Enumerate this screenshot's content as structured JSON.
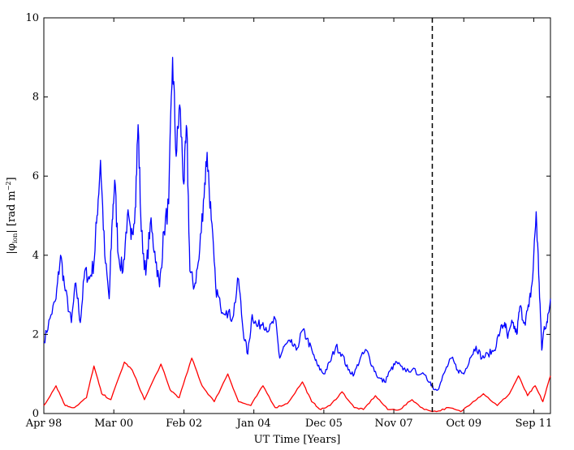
{
  "chart_data": {
    "type": "line",
    "title": "",
    "xlabel": "UT Time [Years]",
    "ylabel": "|φion| [rad m⁻²]",
    "ylabel_parts": {
      "open": "|φ",
      "sub": "ion",
      "mid": "| [rad m",
      "sup": "−2",
      "close": "]"
    },
    "xlim": [
      "1998-04-01",
      "2012-02-15"
    ],
    "ylim": [
      0,
      10
    ],
    "yticks": [
      0,
      2,
      4,
      6,
      8,
      10
    ],
    "xticks": [
      {
        "label": "Apr 98",
        "date": "1998-04-01"
      },
      {
        "label": "Mar 00",
        "date": "2000-03-01"
      },
      {
        "label": "Feb 02",
        "date": "2002-02-01"
      },
      {
        "label": "Jan 04",
        "date": "2004-01-01"
      },
      {
        "label": "Dec 05",
        "date": "2005-12-01"
      },
      {
        "label": "Nov 07",
        "date": "2007-11-01"
      },
      {
        "label": "Oct 09",
        "date": "2009-10-01"
      },
      {
        "label": "Sep 11",
        "date": "2011-09-01"
      }
    ],
    "vline": {
      "date": "2008-11-20",
      "style": "dashed",
      "color": "#000000"
    },
    "grid": false,
    "series": [
      {
        "color": "#0000ff",
        "points": [
          [
            "1998-04-01",
            1.8
          ],
          [
            "1998-06-01",
            2.4
          ],
          [
            "1998-08-01",
            2.9
          ],
          [
            "1998-09-15",
            4.0
          ],
          [
            "1998-11-01",
            3.1
          ],
          [
            "1999-01-01",
            2.3
          ],
          [
            "1999-02-15",
            3.3
          ],
          [
            "1999-04-01",
            2.3
          ],
          [
            "1999-05-15",
            3.6
          ],
          [
            "1999-07-01",
            3.4
          ],
          [
            "1999-08-15",
            3.8
          ],
          [
            "1999-09-15",
            5.0
          ],
          [
            "1999-10-20",
            6.4
          ],
          [
            "1999-12-01",
            4.0
          ],
          [
            "2000-01-15",
            2.9
          ],
          [
            "2000-02-15",
            4.9
          ],
          [
            "2000-03-10",
            5.9
          ],
          [
            "2000-04-15",
            4.0
          ],
          [
            "2000-06-01",
            3.6
          ],
          [
            "2000-07-15",
            5.0
          ],
          [
            "2000-08-20",
            4.4
          ],
          [
            "2000-10-01",
            5.2
          ],
          [
            "2000-10-30",
            7.3
          ],
          [
            "2000-12-01",
            4.6
          ],
          [
            "2001-01-15",
            3.5
          ],
          [
            "2001-03-01",
            4.8
          ],
          [
            "2001-04-15",
            4.1
          ],
          [
            "2001-06-01",
            3.2
          ],
          [
            "2001-07-15",
            4.6
          ],
          [
            "2001-09-01",
            5.3
          ],
          [
            "2001-10-10",
            9.0
          ],
          [
            "2001-11-15",
            6.5
          ],
          [
            "2001-12-20",
            7.8
          ],
          [
            "2002-01-30",
            5.8
          ],
          [
            "2002-03-01",
            7.2
          ],
          [
            "2002-04-01",
            3.6
          ],
          [
            "2002-05-15",
            3.2
          ],
          [
            "2002-07-01",
            3.9
          ],
          [
            "2002-08-15",
            5.4
          ],
          [
            "2002-09-20",
            6.6
          ],
          [
            "2002-11-01",
            4.9
          ],
          [
            "2002-12-15",
            3.2
          ],
          [
            "2003-02-01",
            2.7
          ],
          [
            "2003-04-01",
            2.6
          ],
          [
            "2003-06-01",
            2.4
          ],
          [
            "2003-08-01",
            3.4
          ],
          [
            "2003-09-15",
            2.1
          ],
          [
            "2003-11-01",
            1.5
          ],
          [
            "2003-12-15",
            2.5
          ],
          [
            "2004-02-01",
            2.2
          ],
          [
            "2004-04-01",
            2.3
          ],
          [
            "2004-06-01",
            2.1
          ],
          [
            "2004-08-01",
            2.4
          ],
          [
            "2004-09-15",
            1.4
          ],
          [
            "2004-11-01",
            1.7
          ],
          [
            "2005-01-01",
            1.8
          ],
          [
            "2005-03-01",
            1.6
          ],
          [
            "2005-05-01",
            2.1
          ],
          [
            "2005-06-15",
            1.9
          ],
          [
            "2005-08-15",
            1.5
          ],
          [
            "2005-10-01",
            1.2
          ],
          [
            "2005-12-01",
            1.0
          ],
          [
            "2006-02-01",
            1.3
          ],
          [
            "2006-04-01",
            1.7
          ],
          [
            "2006-06-01",
            1.5
          ],
          [
            "2006-08-01",
            1.1
          ],
          [
            "2006-10-01",
            1.0
          ],
          [
            "2006-12-01",
            1.4
          ],
          [
            "2007-02-01",
            1.6
          ],
          [
            "2007-04-01",
            1.2
          ],
          [
            "2007-06-01",
            0.9
          ],
          [
            "2007-08-01",
            0.8
          ],
          [
            "2007-10-01",
            1.1
          ],
          [
            "2007-12-01",
            1.3
          ],
          [
            "2008-02-01",
            1.1
          ],
          [
            "2008-05-01",
            1.1
          ],
          [
            "2008-08-01",
            1.0
          ],
          [
            "2008-11-01",
            0.8
          ],
          [
            "2008-12-15",
            0.6
          ],
          [
            "2009-02-01",
            0.7
          ],
          [
            "2009-04-01",
            1.1
          ],
          [
            "2009-06-01",
            1.4
          ],
          [
            "2009-08-01",
            1.1
          ],
          [
            "2009-10-01",
            1.0
          ],
          [
            "2009-12-01",
            1.4
          ],
          [
            "2010-02-01",
            1.7
          ],
          [
            "2010-04-01",
            1.4
          ],
          [
            "2010-06-01",
            1.5
          ],
          [
            "2010-08-01",
            1.6
          ],
          [
            "2010-10-01",
            2.1
          ],
          [
            "2010-11-15",
            2.3
          ],
          [
            "2010-12-15",
            1.9
          ],
          [
            "2011-02-01",
            2.3
          ],
          [
            "2011-03-15",
            2.0
          ],
          [
            "2011-04-15",
            2.7
          ],
          [
            "2011-06-01",
            2.3
          ],
          [
            "2011-07-15",
            2.7
          ],
          [
            "2011-08-20",
            3.4
          ],
          [
            "2011-09-25",
            5.1
          ],
          [
            "2011-10-25",
            3.3
          ],
          [
            "2011-11-20",
            1.6
          ],
          [
            "2011-12-15",
            2.2
          ],
          [
            "2012-01-15",
            2.3
          ],
          [
            "2012-02-15",
            2.9
          ]
        ]
      },
      {
        "color": "#ff0000",
        "points": [
          [
            "1998-04-01",
            0.2
          ],
          [
            "1998-08-01",
            0.7
          ],
          [
            "1998-11-01",
            0.2
          ],
          [
            "1999-02-01",
            0.15
          ],
          [
            "1999-06-01",
            0.4
          ],
          [
            "1999-08-15",
            1.2
          ],
          [
            "1999-11-01",
            0.5
          ],
          [
            "2000-02-01",
            0.35
          ],
          [
            "2000-06-15",
            1.3
          ],
          [
            "2000-09-01",
            1.1
          ],
          [
            "2001-01-01",
            0.35
          ],
          [
            "2001-06-15",
            1.25
          ],
          [
            "2001-09-15",
            0.6
          ],
          [
            "2001-12-15",
            0.4
          ],
          [
            "2002-04-20",
            1.4
          ],
          [
            "2002-08-01",
            0.7
          ],
          [
            "2002-12-01",
            0.3
          ],
          [
            "2003-04-15",
            1.0
          ],
          [
            "2003-08-01",
            0.3
          ],
          [
            "2003-12-01",
            0.2
          ],
          [
            "2004-04-01",
            0.7
          ],
          [
            "2004-08-01",
            0.15
          ],
          [
            "2004-12-01",
            0.25
          ],
          [
            "2005-05-01",
            0.8
          ],
          [
            "2005-08-01",
            0.3
          ],
          [
            "2005-11-01",
            0.1
          ],
          [
            "2006-02-01",
            0.2
          ],
          [
            "2006-06-01",
            0.55
          ],
          [
            "2006-10-01",
            0.15
          ],
          [
            "2007-01-01",
            0.1
          ],
          [
            "2007-05-01",
            0.45
          ],
          [
            "2007-09-01",
            0.1
          ],
          [
            "2008-01-01",
            0.1
          ],
          [
            "2008-05-01",
            0.35
          ],
          [
            "2008-09-01",
            0.1
          ],
          [
            "2009-01-01",
            0.05
          ],
          [
            "2009-05-01",
            0.15
          ],
          [
            "2009-09-01",
            0.05
          ],
          [
            "2010-01-01",
            0.3
          ],
          [
            "2010-04-15",
            0.5
          ],
          [
            "2010-09-01",
            0.2
          ],
          [
            "2011-01-01",
            0.5
          ],
          [
            "2011-04-01",
            0.95
          ],
          [
            "2011-07-01",
            0.45
          ],
          [
            "2011-09-15",
            0.7
          ],
          [
            "2011-12-01",
            0.3
          ],
          [
            "2012-02-15",
            0.95
          ]
        ]
      }
    ]
  }
}
